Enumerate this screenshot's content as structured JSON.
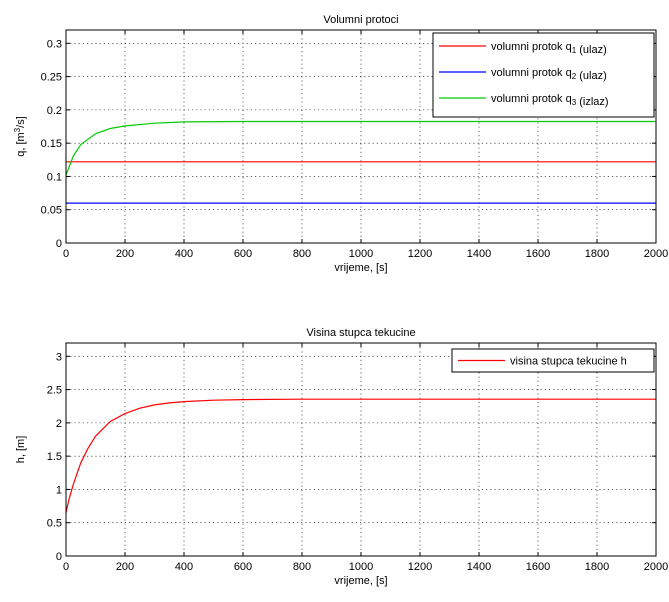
{
  "chart_data": [
    {
      "type": "line",
      "title": "Volumni protoci",
      "xlabel": "vrijeme, [s]",
      "ylabel": "q, [m³/s]",
      "xlim": [
        0,
        2000
      ],
      "ylim": [
        0,
        0.32
      ],
      "xticks": [
        0,
        200,
        400,
        600,
        800,
        1000,
        1200,
        1400,
        1600,
        1800,
        2000
      ],
      "yticks": [
        0,
        0.05,
        0.1,
        0.15,
        0.2,
        0.25,
        0.3
      ],
      "yticklabels": [
        "0",
        "0.05",
        "0.1",
        "0.15",
        "0.2",
        "0.25",
        "0.3"
      ],
      "grid": true,
      "legend_position": "top-right",
      "series": [
        {
          "name": "volumni protok q1 (ulaz)",
          "color": "#ff0000",
          "x": [
            0,
            2000
          ],
          "y": [
            0.122,
            0.122
          ]
        },
        {
          "name": "volumni protok q2 (ulaz)",
          "color": "#0000ff",
          "x": [
            0,
            2000
          ],
          "y": [
            0.06,
            0.06
          ]
        },
        {
          "name": "volumni protok q3 (izlaz)",
          "color": "#00cc00",
          "x": [
            0,
            25,
            50,
            100,
            150,
            200,
            300,
            400,
            600,
            800,
            1000,
            1500,
            2000
          ],
          "y": [
            0.102,
            0.131,
            0.148,
            0.164,
            0.172,
            0.176,
            0.18,
            0.182,
            0.1825,
            0.1825,
            0.1825,
            0.1825,
            0.1825
          ]
        }
      ]
    },
    {
      "type": "line",
      "title": "Visina stupca tekucine",
      "xlabel": "vrijeme, [s]",
      "ylabel": "h, [m]",
      "xlim": [
        0,
        2000
      ],
      "ylim": [
        0,
        3.2
      ],
      "xticks": [
        0,
        200,
        400,
        600,
        800,
        1000,
        1200,
        1400,
        1600,
        1800,
        2000
      ],
      "yticks": [
        0,
        0.5,
        1,
        1.5,
        2,
        2.5,
        3
      ],
      "yticklabels": [
        "0",
        "0.5",
        "1",
        "1.5",
        "2",
        "2.5",
        "3"
      ],
      "grid": true,
      "legend_position": "top-right",
      "series": [
        {
          "name": "visina stupca tekucine h",
          "color": "#ff0000",
          "x": [
            0,
            10,
            25,
            50,
            75,
            100,
            150,
            200,
            250,
            300,
            350,
            400,
            500,
            600,
            800,
            1000,
            1500,
            2000
          ],
          "y": [
            0.65,
            0.85,
            1.08,
            1.4,
            1.62,
            1.8,
            2.02,
            2.14,
            2.22,
            2.27,
            2.3,
            2.32,
            2.34,
            2.35,
            2.355,
            2.355,
            2.355,
            2.355
          ]
        }
      ]
    }
  ]
}
